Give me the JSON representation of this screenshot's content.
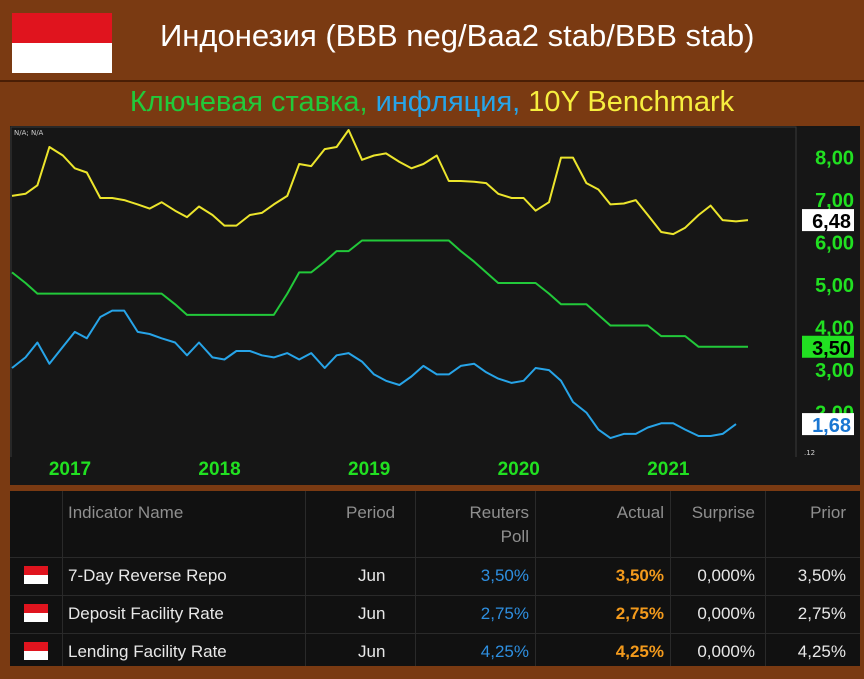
{
  "header": {
    "title": "Индонезия (BBB neg/Baa2 stab/BBB stab)",
    "subtitle_parts": [
      {
        "text": "Ключевая ставка, ",
        "color": "#22c93a"
      },
      {
        "text": "инфляция, ",
        "color": "#27a4e8"
      },
      {
        "text": "10Y Benchmark",
        "color": "#f6ee3e"
      }
    ]
  },
  "chart_data": {
    "type": "line",
    "corner_label": "N/A; N/A",
    "x_ticks": [
      "2017",
      "2018",
      "2019",
      "2020",
      "2021"
    ],
    "y_ticks": [
      "8,00",
      "7,00",
      "6,00",
      "5,00",
      "4,00",
      "3,00",
      "2,00"
    ],
    "ylim": [
      1.0,
      8.6
    ],
    "small_label": ".12",
    "series": [
      {
        "color": "#ece52c",
        "last_label": "6,48",
        "points": [
          [
            2016.58,
            7.05
          ],
          [
            2016.67,
            7.1
          ],
          [
            2016.75,
            7.3
          ],
          [
            2016.83,
            8.2
          ],
          [
            2016.92,
            8.0
          ],
          [
            2017.0,
            7.7
          ],
          [
            2017.08,
            7.6
          ],
          [
            2017.17,
            7.0
          ],
          [
            2017.25,
            7.0
          ],
          [
            2017.33,
            6.95
          ],
          [
            2017.42,
            6.85
          ],
          [
            2017.5,
            6.75
          ],
          [
            2017.58,
            6.9
          ],
          [
            2017.67,
            6.7
          ],
          [
            2017.75,
            6.55
          ],
          [
            2017.83,
            6.8
          ],
          [
            2017.92,
            6.6
          ],
          [
            2018.0,
            6.35
          ],
          [
            2018.08,
            6.35
          ],
          [
            2018.17,
            6.6
          ],
          [
            2018.25,
            6.65
          ],
          [
            2018.33,
            6.85
          ],
          [
            2018.42,
            7.05
          ],
          [
            2018.5,
            7.8
          ],
          [
            2018.58,
            7.75
          ],
          [
            2018.67,
            8.15
          ],
          [
            2018.75,
            8.2
          ],
          [
            2018.83,
            8.6
          ],
          [
            2018.92,
            7.9
          ],
          [
            2019.0,
            8.0
          ],
          [
            2019.08,
            8.05
          ],
          [
            2019.17,
            7.85
          ],
          [
            2019.25,
            7.7
          ],
          [
            2019.33,
            7.8
          ],
          [
            2019.42,
            8.0
          ],
          [
            2019.5,
            7.4
          ],
          [
            2019.58,
            7.4
          ],
          [
            2019.67,
            7.38
          ],
          [
            2019.75,
            7.35
          ],
          [
            2019.83,
            7.1
          ],
          [
            2019.92,
            7.0
          ],
          [
            2020.0,
            7.0
          ],
          [
            2020.08,
            6.7
          ],
          [
            2020.17,
            6.9
          ],
          [
            2020.25,
            7.95
          ],
          [
            2020.33,
            7.95
          ],
          [
            2020.42,
            7.35
          ],
          [
            2020.5,
            7.2
          ],
          [
            2020.58,
            6.85
          ],
          [
            2020.67,
            6.87
          ],
          [
            2020.75,
            6.95
          ],
          [
            2020.83,
            6.6
          ],
          [
            2020.92,
            6.2
          ],
          [
            2021.0,
            6.15
          ],
          [
            2021.08,
            6.3
          ],
          [
            2021.17,
            6.6
          ],
          [
            2021.25,
            6.82
          ],
          [
            2021.33,
            6.48
          ],
          [
            2021.42,
            6.45
          ],
          [
            2021.5,
            6.48
          ]
        ]
      },
      {
        "color": "#22c93a",
        "last_label": "3,50",
        "points": [
          [
            2016.58,
            5.25
          ],
          [
            2016.67,
            5.0
          ],
          [
            2016.75,
            4.75
          ],
          [
            2017.58,
            4.75
          ],
          [
            2017.67,
            4.5
          ],
          [
            2017.75,
            4.25
          ],
          [
            2018.33,
            4.25
          ],
          [
            2018.42,
            4.75
          ],
          [
            2018.5,
            5.25
          ],
          [
            2018.58,
            5.25
          ],
          [
            2018.67,
            5.5
          ],
          [
            2018.75,
            5.75
          ],
          [
            2018.83,
            5.75
          ],
          [
            2018.92,
            6.0
          ],
          [
            2019.5,
            6.0
          ],
          [
            2019.58,
            5.75
          ],
          [
            2019.67,
            5.5
          ],
          [
            2019.75,
            5.25
          ],
          [
            2019.83,
            5.0
          ],
          [
            2020.08,
            5.0
          ],
          [
            2020.17,
            4.75
          ],
          [
            2020.25,
            4.5
          ],
          [
            2020.42,
            4.5
          ],
          [
            2020.5,
            4.25
          ],
          [
            2020.58,
            4.0
          ],
          [
            2020.83,
            4.0
          ],
          [
            2020.92,
            3.75
          ],
          [
            2021.08,
            3.75
          ],
          [
            2021.17,
            3.5
          ],
          [
            2021.5,
            3.5
          ]
        ]
      },
      {
        "color": "#27a4e8",
        "last_label": "1,68",
        "points": [
          [
            2016.58,
            3.0
          ],
          [
            2016.67,
            3.25
          ],
          [
            2016.75,
            3.6
          ],
          [
            2016.83,
            3.1
          ],
          [
            2016.92,
            3.5
          ],
          [
            2017.0,
            3.85
          ],
          [
            2017.08,
            3.7
          ],
          [
            2017.17,
            4.2
          ],
          [
            2017.25,
            4.35
          ],
          [
            2017.33,
            4.35
          ],
          [
            2017.42,
            3.85
          ],
          [
            2017.5,
            3.8
          ],
          [
            2017.58,
            3.7
          ],
          [
            2017.67,
            3.6
          ],
          [
            2017.75,
            3.3
          ],
          [
            2017.83,
            3.6
          ],
          [
            2017.92,
            3.25
          ],
          [
            2018.0,
            3.2
          ],
          [
            2018.08,
            3.4
          ],
          [
            2018.17,
            3.4
          ],
          [
            2018.25,
            3.3
          ],
          [
            2018.33,
            3.25
          ],
          [
            2018.42,
            3.35
          ],
          [
            2018.5,
            3.2
          ],
          [
            2018.58,
            3.35
          ],
          [
            2018.67,
            3.0
          ],
          [
            2018.75,
            3.3
          ],
          [
            2018.83,
            3.35
          ],
          [
            2018.92,
            3.15
          ],
          [
            2019.0,
            2.85
          ],
          [
            2019.08,
            2.7
          ],
          [
            2019.17,
            2.6
          ],
          [
            2019.25,
            2.8
          ],
          [
            2019.33,
            3.05
          ],
          [
            2019.42,
            2.85
          ],
          [
            2019.5,
            2.85
          ],
          [
            2019.58,
            3.05
          ],
          [
            2019.67,
            3.1
          ],
          [
            2019.75,
            2.9
          ],
          [
            2019.83,
            2.75
          ],
          [
            2019.92,
            2.65
          ],
          [
            2020.0,
            2.7
          ],
          [
            2020.08,
            3.0
          ],
          [
            2020.17,
            2.95
          ],
          [
            2020.25,
            2.7
          ],
          [
            2020.33,
            2.2
          ],
          [
            2020.42,
            1.95
          ],
          [
            2020.5,
            1.55
          ],
          [
            2020.58,
            1.35
          ],
          [
            2020.67,
            1.45
          ],
          [
            2020.75,
            1.45
          ],
          [
            2020.83,
            1.6
          ],
          [
            2020.92,
            1.7
          ],
          [
            2021.0,
            1.7
          ],
          [
            2021.08,
            1.55
          ],
          [
            2021.17,
            1.4
          ],
          [
            2021.25,
            1.4
          ],
          [
            2021.33,
            1.45
          ],
          [
            2021.42,
            1.68
          ]
        ]
      }
    ]
  },
  "table": {
    "headers": [
      "Indicator Name",
      "Period",
      "Reuters Poll",
      "Actual",
      "Surprise",
      "Prior"
    ],
    "header_reuters_line1": "Reuters",
    "header_reuters_line2": "Poll",
    "rows": [
      {
        "name": "7-Day Reverse Repo",
        "period": "Jun",
        "poll": "3,50%",
        "actual": "3,50%",
        "surprise": "0,000%",
        "prior": "3,50%"
      },
      {
        "name": "Deposit Facility Rate",
        "period": "Jun",
        "poll": "2,75%",
        "actual": "2,75%",
        "surprise": "0,000%",
        "prior": "2,75%"
      },
      {
        "name": "Lending Facility Rate",
        "period": "Jun",
        "poll": "4,25%",
        "actual": "4,25%",
        "surprise": "0,000%",
        "prior": "4,25%"
      }
    ],
    "colors": {
      "poll": "#2e8fe0",
      "actual": "#f39a1c"
    }
  }
}
